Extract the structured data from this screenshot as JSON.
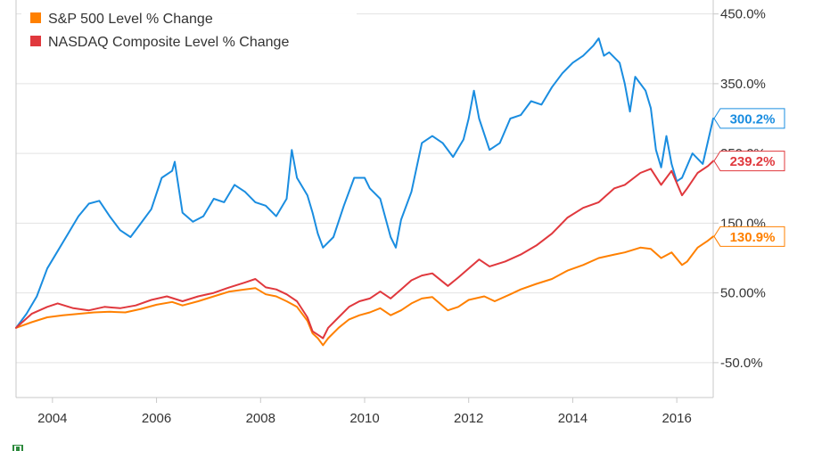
{
  "chart_data": {
    "type": "line",
    "title": "",
    "xlabel": "",
    "ylabel": "",
    "x_ticks": [
      "2004",
      "2006",
      "2008",
      "2010",
      "2012",
      "2014",
      "2016"
    ],
    "y_ticks": [
      "-50.0%",
      "50.00%",
      "150.0%",
      "250.0%",
      "350.0%",
      "450.0%"
    ],
    "xlim": [
      2003.3,
      2016.7
    ],
    "ylim": [
      -100,
      470
    ],
    "grid": true,
    "legend_placement": "top-left",
    "series": [
      {
        "name": "",
        "color": "#1a8de0",
        "end_label": "300.2%",
        "points": [
          [
            2003.3,
            0
          ],
          [
            2003.5,
            20
          ],
          [
            2003.7,
            45
          ],
          [
            2003.9,
            85
          ],
          [
            2004.1,
            110
          ],
          [
            2004.3,
            135
          ],
          [
            2004.5,
            160
          ],
          [
            2004.7,
            178
          ],
          [
            2004.9,
            182
          ],
          [
            2005.1,
            160
          ],
          [
            2005.3,
            140
          ],
          [
            2005.5,
            130
          ],
          [
            2005.7,
            150
          ],
          [
            2005.9,
            170
          ],
          [
            2006.1,
            215
          ],
          [
            2006.3,
            225
          ],
          [
            2006.35,
            238
          ],
          [
            2006.5,
            165
          ],
          [
            2006.7,
            152
          ],
          [
            2006.9,
            160
          ],
          [
            2007.1,
            185
          ],
          [
            2007.3,
            180
          ],
          [
            2007.5,
            205
          ],
          [
            2007.7,
            195
          ],
          [
            2007.9,
            180
          ],
          [
            2008.1,
            175
          ],
          [
            2008.3,
            160
          ],
          [
            2008.5,
            185
          ],
          [
            2008.6,
            255
          ],
          [
            2008.7,
            215
          ],
          [
            2008.9,
            190
          ],
          [
            2009.0,
            165
          ],
          [
            2009.1,
            135
          ],
          [
            2009.2,
            115
          ],
          [
            2009.4,
            130
          ],
          [
            2009.6,
            175
          ],
          [
            2009.8,
            215
          ],
          [
            2010.0,
            215
          ],
          [
            2010.1,
            200
          ],
          [
            2010.3,
            185
          ],
          [
            2010.5,
            130
          ],
          [
            2010.6,
            115
          ],
          [
            2010.7,
            155
          ],
          [
            2010.9,
            195
          ],
          [
            2011.1,
            265
          ],
          [
            2011.3,
            275
          ],
          [
            2011.5,
            265
          ],
          [
            2011.7,
            245
          ],
          [
            2011.9,
            270
          ],
          [
            2012.0,
            300
          ],
          [
            2012.1,
            340
          ],
          [
            2012.2,
            300
          ],
          [
            2012.4,
            255
          ],
          [
            2012.6,
            265
          ],
          [
            2012.8,
            300
          ],
          [
            2013.0,
            305
          ],
          [
            2013.2,
            325
          ],
          [
            2013.4,
            320
          ],
          [
            2013.6,
            345
          ],
          [
            2013.8,
            365
          ],
          [
            2014.0,
            380
          ],
          [
            2014.2,
            390
          ],
          [
            2014.4,
            405
          ],
          [
            2014.5,
            415
          ],
          [
            2014.6,
            390
          ],
          [
            2014.7,
            395
          ],
          [
            2014.9,
            380
          ],
          [
            2015.0,
            350
          ],
          [
            2015.1,
            310
          ],
          [
            2015.2,
            360
          ],
          [
            2015.4,
            340
          ],
          [
            2015.5,
            315
          ],
          [
            2015.6,
            255
          ],
          [
            2015.7,
            230
          ],
          [
            2015.8,
            275
          ],
          [
            2015.9,
            235
          ],
          [
            2016.0,
            210
          ],
          [
            2016.1,
            215
          ],
          [
            2016.3,
            250
          ],
          [
            2016.5,
            235
          ],
          [
            2016.7,
            300.2
          ]
        ]
      },
      {
        "name": "S&P 500 Level % Change",
        "color": "#ff8000",
        "end_label": "130.9%",
        "points": [
          [
            2003.3,
            0
          ],
          [
            2003.6,
            8
          ],
          [
            2003.9,
            15
          ],
          [
            2004.2,
            18
          ],
          [
            2004.5,
            20
          ],
          [
            2004.8,
            22
          ],
          [
            2005.1,
            23
          ],
          [
            2005.4,
            22
          ],
          [
            2005.7,
            27
          ],
          [
            2006.0,
            33
          ],
          [
            2006.3,
            37
          ],
          [
            2006.5,
            32
          ],
          [
            2006.8,
            38
          ],
          [
            2007.1,
            45
          ],
          [
            2007.4,
            52
          ],
          [
            2007.7,
            55
          ],
          [
            2007.9,
            57
          ],
          [
            2008.1,
            48
          ],
          [
            2008.3,
            45
          ],
          [
            2008.5,
            38
          ],
          [
            2008.7,
            30
          ],
          [
            2008.9,
            10
          ],
          [
            2009.0,
            -8
          ],
          [
            2009.1,
            -15
          ],
          [
            2009.2,
            -25
          ],
          [
            2009.3,
            -15
          ],
          [
            2009.5,
            0
          ],
          [
            2009.7,
            12
          ],
          [
            2009.9,
            18
          ],
          [
            2010.1,
            22
          ],
          [
            2010.3,
            28
          ],
          [
            2010.5,
            18
          ],
          [
            2010.7,
            25
          ],
          [
            2010.9,
            35
          ],
          [
            2011.1,
            42
          ],
          [
            2011.3,
            44
          ],
          [
            2011.6,
            25
          ],
          [
            2011.8,
            30
          ],
          [
            2012.0,
            40
          ],
          [
            2012.3,
            45
          ],
          [
            2012.5,
            38
          ],
          [
            2012.8,
            48
          ],
          [
            2013.0,
            55
          ],
          [
            2013.3,
            63
          ],
          [
            2013.6,
            70
          ],
          [
            2013.9,
            82
          ],
          [
            2014.2,
            90
          ],
          [
            2014.5,
            100
          ],
          [
            2014.8,
            105
          ],
          [
            2015.0,
            108
          ],
          [
            2015.3,
            115
          ],
          [
            2015.5,
            113
          ],
          [
            2015.7,
            100
          ],
          [
            2015.9,
            108
          ],
          [
            2016.1,
            90
          ],
          [
            2016.2,
            95
          ],
          [
            2016.4,
            115
          ],
          [
            2016.6,
            125
          ],
          [
            2016.7,
            130.9
          ]
        ]
      },
      {
        "name": "NASDAQ Composite Level % Change",
        "color": "#e0383d",
        "end_label": "239.2%",
        "points": [
          [
            2003.3,
            0
          ],
          [
            2003.6,
            20
          ],
          [
            2003.9,
            30
          ],
          [
            2004.1,
            35
          ],
          [
            2004.4,
            28
          ],
          [
            2004.7,
            25
          ],
          [
            2005.0,
            30
          ],
          [
            2005.3,
            28
          ],
          [
            2005.6,
            32
          ],
          [
            2005.9,
            40
          ],
          [
            2006.2,
            45
          ],
          [
            2006.5,
            38
          ],
          [
            2006.8,
            45
          ],
          [
            2007.1,
            50
          ],
          [
            2007.4,
            58
          ],
          [
            2007.7,
            65
          ],
          [
            2007.9,
            70
          ],
          [
            2008.1,
            58
          ],
          [
            2008.3,
            55
          ],
          [
            2008.5,
            48
          ],
          [
            2008.7,
            38
          ],
          [
            2008.9,
            15
          ],
          [
            2009.0,
            -5
          ],
          [
            2009.1,
            -10
          ],
          [
            2009.2,
            -15
          ],
          [
            2009.3,
            0
          ],
          [
            2009.5,
            15
          ],
          [
            2009.7,
            30
          ],
          [
            2009.9,
            38
          ],
          [
            2010.1,
            42
          ],
          [
            2010.3,
            52
          ],
          [
            2010.5,
            42
          ],
          [
            2010.7,
            55
          ],
          [
            2010.9,
            68
          ],
          [
            2011.1,
            75
          ],
          [
            2011.3,
            78
          ],
          [
            2011.6,
            60
          ],
          [
            2011.8,
            72
          ],
          [
            2012.0,
            85
          ],
          [
            2012.2,
            98
          ],
          [
            2012.4,
            88
          ],
          [
            2012.7,
            95
          ],
          [
            2013.0,
            105
          ],
          [
            2013.3,
            118
          ],
          [
            2013.6,
            135
          ],
          [
            2013.9,
            158
          ],
          [
            2014.2,
            172
          ],
          [
            2014.5,
            180
          ],
          [
            2014.8,
            200
          ],
          [
            2015.0,
            205
          ],
          [
            2015.3,
            222
          ],
          [
            2015.5,
            228
          ],
          [
            2015.7,
            205
          ],
          [
            2015.9,
            225
          ],
          [
            2016.1,
            190
          ],
          [
            2016.2,
            200
          ],
          [
            2016.4,
            222
          ],
          [
            2016.6,
            232
          ],
          [
            2016.7,
            239.2
          ]
        ]
      }
    ]
  },
  "footer": {
    "logo": "YCHARTS"
  }
}
